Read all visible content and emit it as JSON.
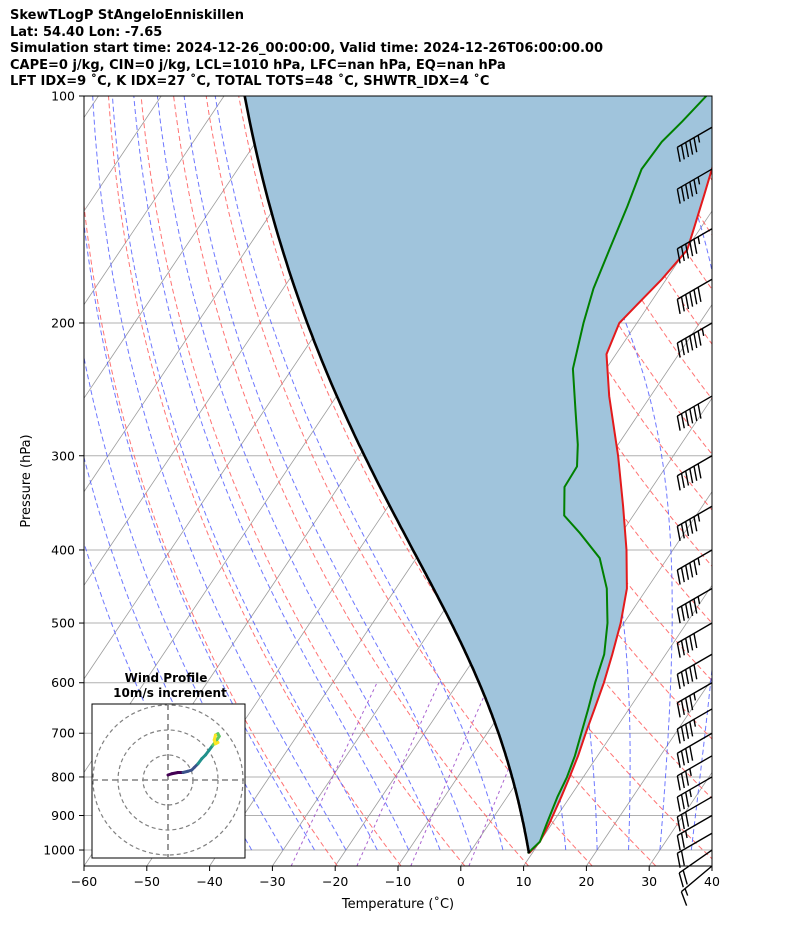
{
  "header": {
    "line1": "SkewTLogP StAngeloEnniskillen",
    "line2": "Lat: 54.40   Lon: -7.65",
    "line3": "Simulation start time: 2024-12-26_00:00:00, Valid time: 2024-12-26T06:00:00.00",
    "line4": "CAPE=0 j/kg, CIN=0 j/kg, LCL=1010 hPa, LFC=nan hPa, EQ=nan hPa",
    "line5": "LFT IDX=9 ˚C, K IDX=27 ˚C, TOTAL TOTS=48 ˚C, SHWTR_IDX=4 ˚C"
  },
  "chart_data": {
    "type": "skew-t log-p",
    "xlabel": "Temperature (˚C)",
    "ylabel": "Pressure (hPa)",
    "xlim": [
      -60,
      40
    ],
    "ylim": [
      1050,
      100
    ],
    "x_ticks": [
      -60,
      -50,
      -40,
      -30,
      -20,
      -10,
      0,
      10,
      20,
      30,
      40
    ],
    "y_ticks": [
      100,
      200,
      300,
      400,
      500,
      600,
      700,
      800,
      900,
      1000
    ],
    "log_scale_y": true,
    "grid": true,
    "colors": {
      "temperature": "#e31a1c",
      "dewpoint": "#008000",
      "parcel": "#000000",
      "cape_fill": "#a0c4dc",
      "dry_adiabat": "#ff5a5a",
      "moist_adiabat": "#4a56ff",
      "mixing_ratio": "#9b48c8",
      "isotherm": "#9c9c9c"
    },
    "temperature_profile": [
      {
        "p": 1010,
        "t": 9.5
      },
      {
        "p": 975,
        "t": 10.0
      },
      {
        "p": 925,
        "t": 9.6
      },
      {
        "p": 850,
        "t": 8.6
      },
      {
        "p": 800,
        "t": 7.8
      },
      {
        "p": 750,
        "t": 6.9
      },
      {
        "p": 700,
        "t": 5.7
      },
      {
        "p": 650,
        "t": 4.5
      },
      {
        "p": 600,
        "t": 3.2
      },
      {
        "p": 550,
        "t": 1.5
      },
      {
        "p": 500,
        "t": -0.5
      },
      {
        "p": 450,
        "t": -3.2
      },
      {
        "p": 400,
        "t": -7.4
      },
      {
        "p": 350,
        "t": -12.6
      },
      {
        "p": 300,
        "t": -18.8
      },
      {
        "p": 250,
        "t": -26.6
      },
      {
        "p": 220,
        "t": -31.5
      },
      {
        "p": 200,
        "t": -32.8
      },
      {
        "p": 175,
        "t": -30.7
      },
      {
        "p": 160,
        "t": -29.8
      },
      {
        "p": 150,
        "t": -31.0
      },
      {
        "p": 135,
        "t": -33.0
      },
      {
        "p": 120,
        "t": -35.3
      },
      {
        "p": 110,
        "t": -36.8
      },
      {
        "p": 100,
        "t": -38.5
      }
    ],
    "dewpoint_profile": [
      {
        "p": 1010,
        "td": 9.3
      },
      {
        "p": 975,
        "td": 10.0
      },
      {
        "p": 925,
        "td": 9.2
      },
      {
        "p": 850,
        "td": 8.0
      },
      {
        "p": 800,
        "td": 7.4
      },
      {
        "p": 750,
        "td": 6.4
      },
      {
        "p": 700,
        "td": 5.0
      },
      {
        "p": 650,
        "td": 3.5
      },
      {
        "p": 600,
        "td": 1.8
      },
      {
        "p": 550,
        "td": 0.2
      },
      {
        "p": 500,
        "td": -2.6
      },
      {
        "p": 450,
        "td": -6.4
      },
      {
        "p": 410,
        "td": -10.8
      },
      {
        "p": 380,
        "td": -16.6
      },
      {
        "p": 360,
        "td": -21.0
      },
      {
        "p": 330,
        "td": -24.0
      },
      {
        "p": 310,
        "td": -24.2
      },
      {
        "p": 290,
        "td": -26.4
      },
      {
        "p": 260,
        "td": -30.6
      },
      {
        "p": 230,
        "td": -35.3
      },
      {
        "p": 200,
        "td": -38.5
      },
      {
        "p": 180,
        "td": -40.6
      },
      {
        "p": 160,
        "td": -42.2
      },
      {
        "p": 140,
        "td": -44.0
      },
      {
        "p": 125,
        "td": -45.7
      },
      {
        "p": 115,
        "td": -45.4
      },
      {
        "p": 108,
        "td": -44.3
      },
      {
        "p": 100,
        "td": -43.2
      }
    ],
    "wind_barbs": {
      "pressures": [
        1050,
        1000,
        950,
        900,
        850,
        800,
        750,
        700,
        650,
        600,
        550,
        500,
        450,
        400,
        350,
        300,
        250,
        200,
        175,
        150,
        125,
        110
      ],
      "direction_deg": [
        230,
        235,
        240,
        240,
        240,
        240,
        240,
        240,
        240,
        240,
        240,
        240,
        240,
        240,
        240,
        240,
        240,
        240,
        240,
        240,
        240,
        240
      ],
      "speed_kt": [
        15,
        20,
        20,
        25,
        30,
        35,
        35,
        40,
        45,
        45,
        50,
        50,
        55,
        55,
        55,
        60,
        60,
        65,
        60,
        55,
        55,
        55
      ]
    },
    "wind_profile_inset": {
      "title": "Wind Profile",
      "subtitle": "10m/s increment",
      "ring_increment_ms": 10,
      "hodograph_uv_ms": [
        [
          0,
          4
        ],
        [
          3,
          5
        ],
        [
          8,
          6
        ],
        [
          12,
          6
        ],
        [
          16,
          7
        ],
        [
          19,
          8
        ],
        [
          21,
          10
        ],
        [
          24,
          13
        ],
        [
          27,
          17
        ],
        [
          30,
          20
        ],
        [
          33,
          24
        ],
        [
          36,
          28
        ],
        [
          39,
          32
        ],
        [
          41,
          35
        ],
        [
          40,
          37
        ],
        [
          38,
          36
        ],
        [
          37,
          32
        ],
        [
          38,
          29
        ],
        [
          40,
          30
        ]
      ],
      "colormap": [
        "#440154",
        "#3b528b",
        "#21918c",
        "#5ec962",
        "#fde725"
      ]
    }
  }
}
